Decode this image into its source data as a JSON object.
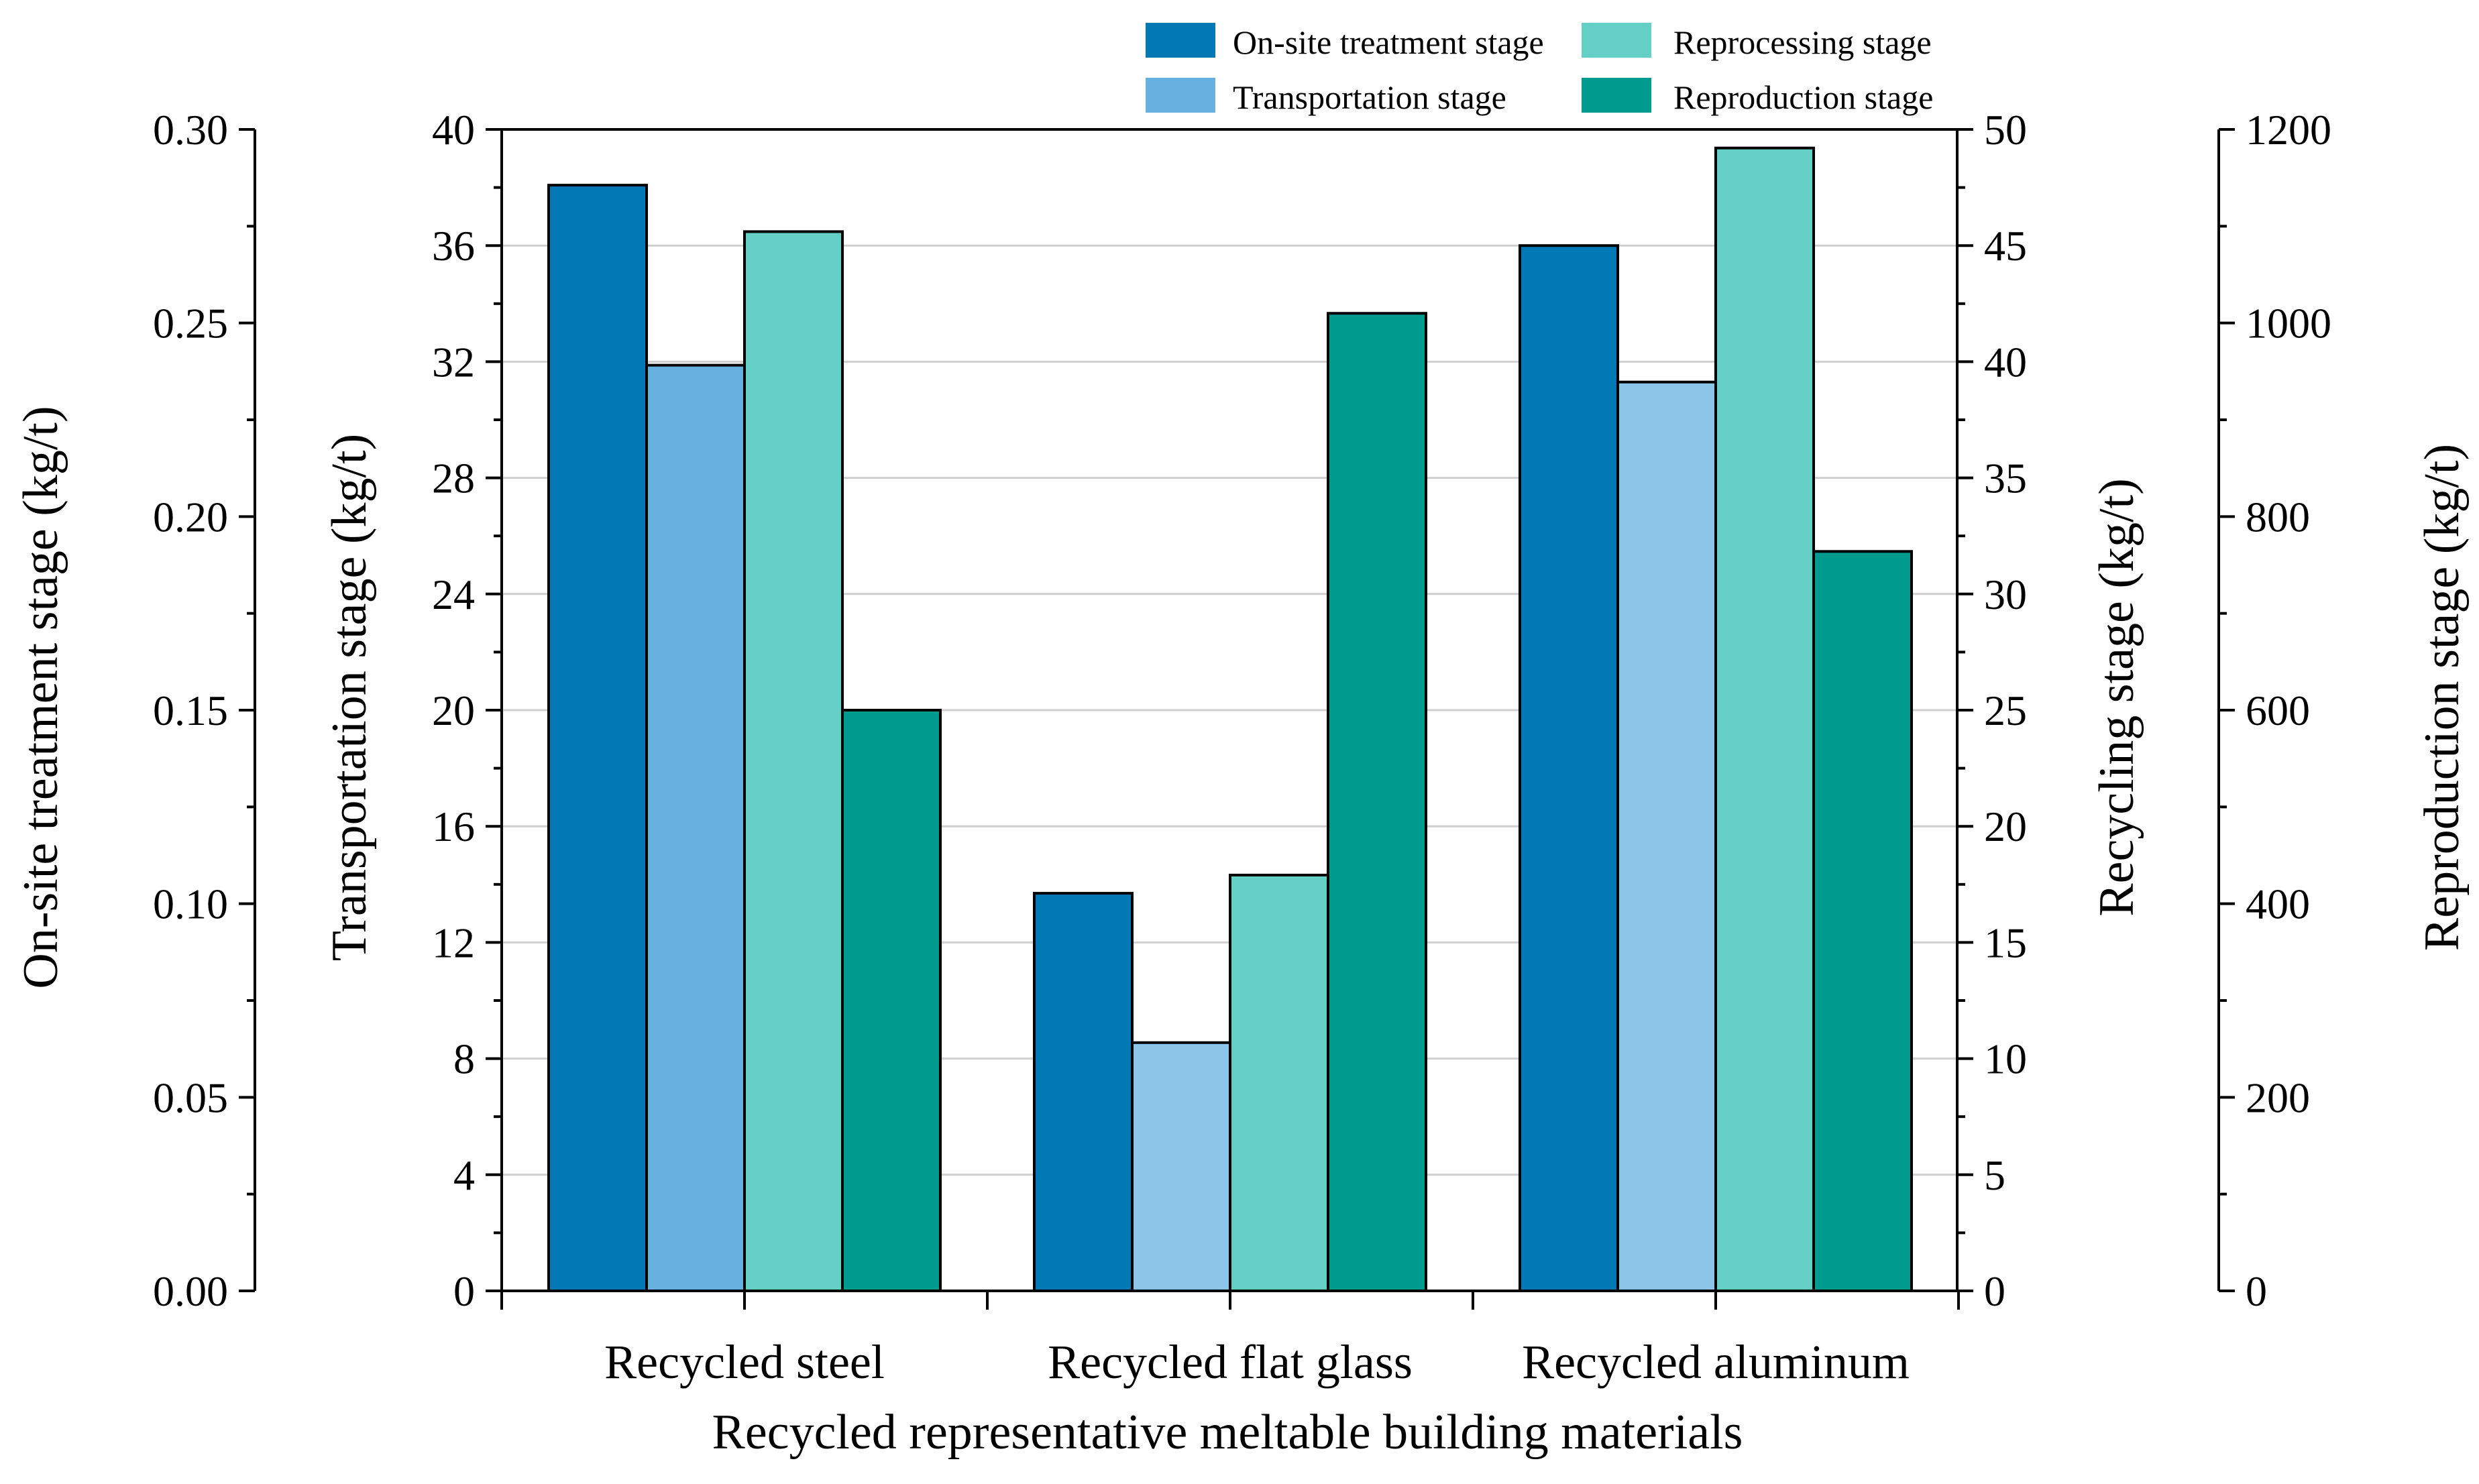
{
  "chart_data": {
    "type": "bar",
    "xlabel": "Recycled representative meltable building materials",
    "categories": [
      "Recycled steel",
      "Recycled flat glass",
      "Recycled aluminum"
    ],
    "series": [
      {
        "name": "On-site treatment stage",
        "axis": "onsite",
        "values": [
          0.2856,
          0.1027,
          0.27
        ],
        "fills": [
          "#0179B5",
          "#0179B5",
          "#0179B5"
        ]
      },
      {
        "name": "Transportation stage",
        "axis": "transport",
        "values": [
          31.88,
          8.55,
          31.3
        ],
        "fills": [
          "#66B1DF",
          "#8BC6E8",
          "#8BC6E8"
        ]
      },
      {
        "name": "Reprocessing stage",
        "axis": "recycling",
        "values": [
          45.6,
          17.9,
          49.2
        ],
        "fills": [
          "#63CFC5",
          "#63CFC5",
          "#63CFC5"
        ]
      },
      {
        "name": "Reproduction stage",
        "axis": "reproduction",
        "values": [
          600,
          1010,
          764
        ],
        "fills": [
          "#009B8F",
          "#009B8F",
          "#009B8F"
        ]
      }
    ],
    "axes": {
      "onsite": {
        "label": "On-site treatment stage (kg/t)",
        "ylim": [
          0,
          0.3
        ],
        "ticks": [
          "0.00",
          "0.05",
          "0.10",
          "0.15",
          "0.20",
          "0.25",
          "0.30"
        ]
      },
      "transport": {
        "label": "Transportation stage (kg/t)",
        "ylim": [
          0,
          40
        ],
        "ticks": [
          "0",
          "4",
          "8",
          "12",
          "16",
          "20",
          "24",
          "28",
          "32",
          "36",
          "40"
        ]
      },
      "recycling": {
        "label": "Recycling stage (kg/t)",
        "ylim": [
          0,
          50
        ],
        "ticks": [
          "0",
          "5",
          "10",
          "15",
          "20",
          "25",
          "30",
          "35",
          "40",
          "45",
          "50"
        ]
      },
      "reproduction": {
        "label": "Reproduction stage (kg/t)",
        "ylim": [
          0,
          1200
        ],
        "ticks": [
          "0",
          "200",
          "400",
          "600",
          "800",
          "1000",
          "1200"
        ]
      }
    },
    "legend": {
      "position": "top-right",
      "entries": [
        {
          "label": "On-site treatment stage",
          "color": "#0179B5"
        },
        {
          "label": "Reprocessing stage",
          "color": "#63CFC5"
        },
        {
          "label": "Transportation stage",
          "color": "#66B1DF"
        },
        {
          "label": "Reproduction stage",
          "color": "#009B8F"
        }
      ]
    },
    "grid": true
  }
}
